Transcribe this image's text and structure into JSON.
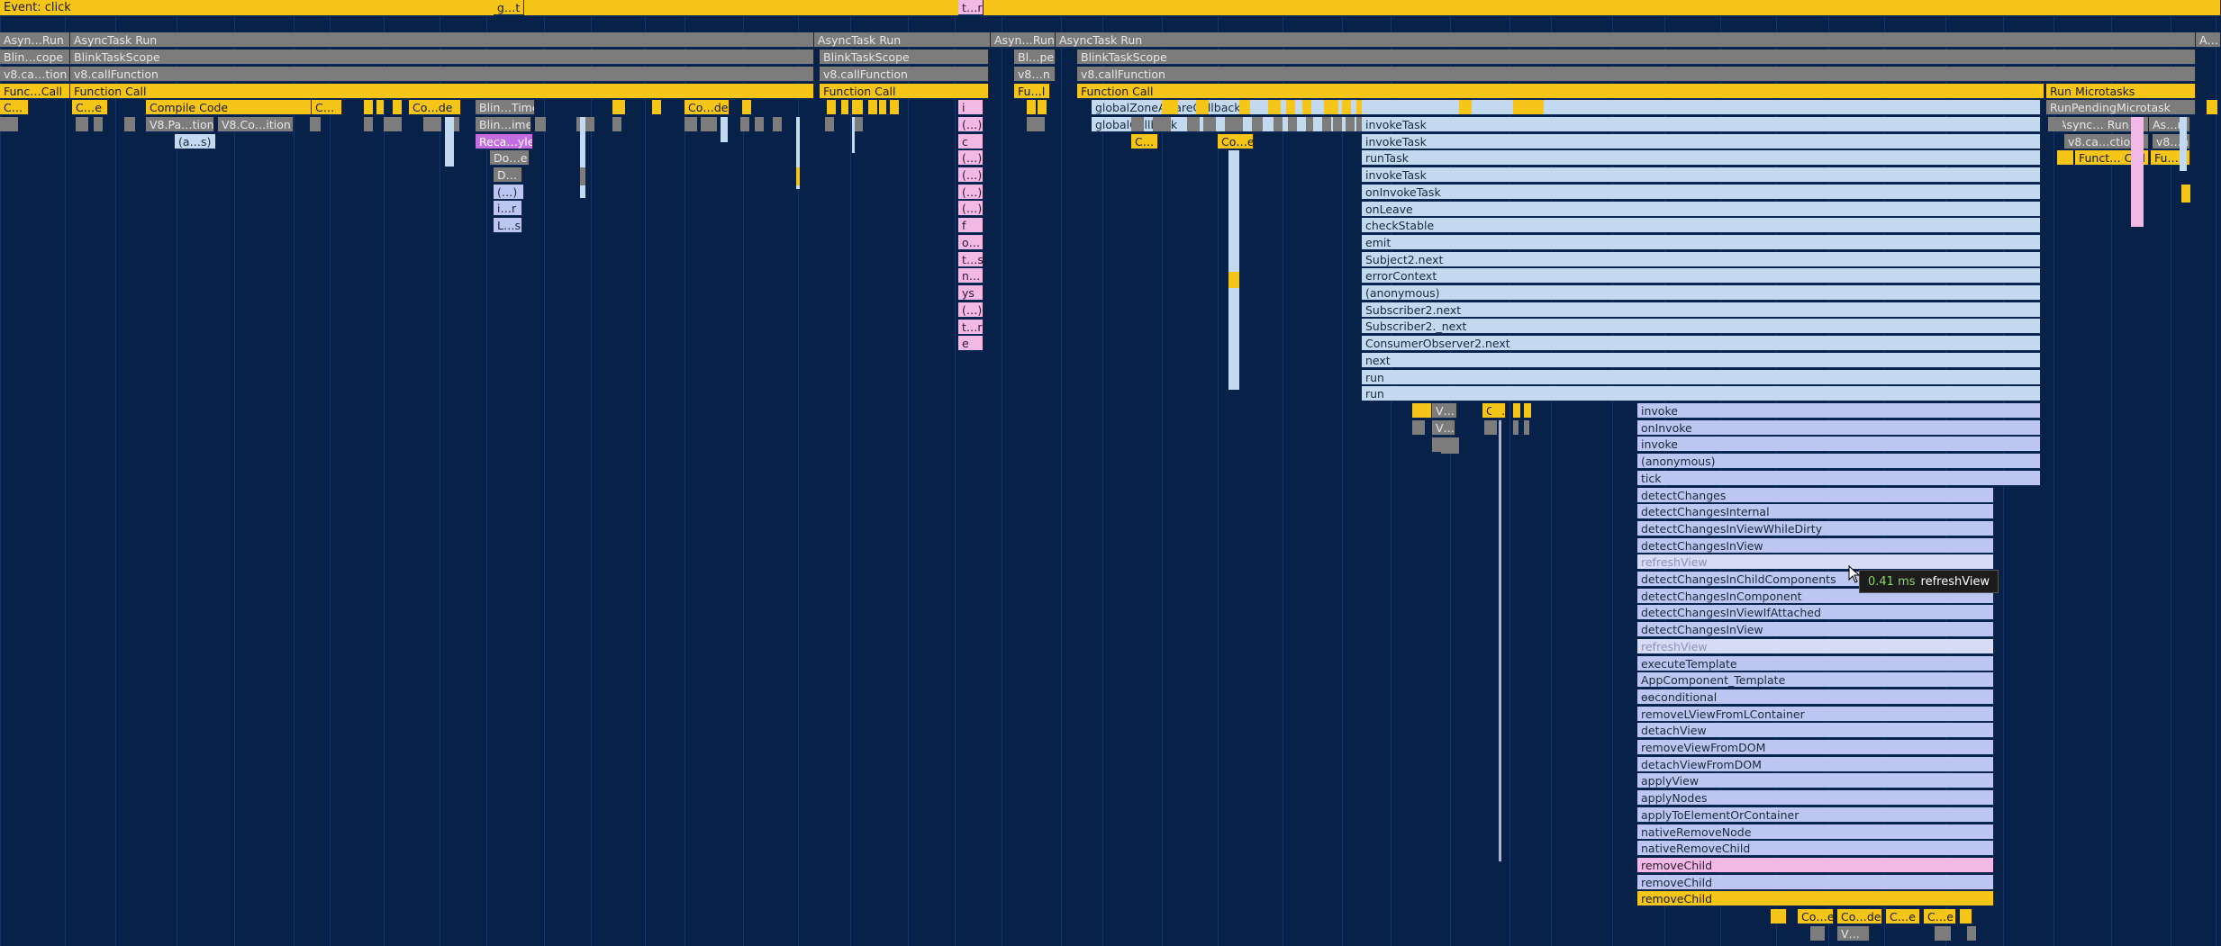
{
  "event_label": "Event: click",
  "tooltip": {
    "duration": "0.41 ms",
    "name": "refreshView"
  },
  "colors": {
    "background": "#072149",
    "scripting": "#f5c518",
    "system": "#7c7c7c",
    "framework": "#c2d9f0",
    "framework_alt": "#bcc6f0",
    "library": "#f2b8e6",
    "rendering": "#c46de3",
    "selected": "#d6dcf5",
    "tooltip_duration": "#8fd16a"
  },
  "rows": {
    "r1": [
      "Asyn…Run",
      "AsyncTask Run",
      "AsyncTask Run",
      "Asyn…Run",
      "AsyncTask Run",
      "A…"
    ],
    "r2": [
      "Blin…cope",
      "BlinkTaskScope",
      "BlinkTaskScope",
      "Bl…pe",
      "BlinkTaskScope"
    ],
    "r3": [
      "v8.ca…tion",
      "v8.callFunction",
      "v8.callFunction",
      "v8…n",
      "v8.callFunction"
    ],
    "r4": [
      "Func…Call",
      "Function Call",
      "Function Call",
      "Fu…l",
      "Function Call",
      "Run Microtasks"
    ],
    "r5": [
      "C…",
      "C…e",
      "Compile Code",
      "C…",
      "Blin…Time",
      "Co…de",
      "Co…de",
      "i",
      "globalZoneAwareCallback",
      "RunPendingMicrotask"
    ],
    "r6": [
      "V8.Pa…tion",
      "V8.Co…ition",
      "Blin…ime",
      "(…)",
      "globalCallback",
      "Async… Run",
      "As…n"
    ],
    "r7": [
      "(a…s)",
      "Reca…yle",
      "c",
      "C…",
      "Co…e",
      "v8.ca…ction",
      "v8…n"
    ],
    "r8": [
      "Do…e",
      "(…)",
      "Funct… Call",
      "Fu…ll"
    ],
    "r9": [
      "D…",
      "(…)"
    ],
    "r10": [
      "(…)",
      "(…)"
    ],
    "r11": [
      "i…r",
      "(…)"
    ],
    "r12": [
      "L…s",
      "f"
    ],
    "r13": [
      "g…t",
      "t…r"
    ],
    "lib_col": [
      "o…",
      "t…s",
      "n…",
      "ys",
      "(…)",
      "t…r",
      "e"
    ],
    "bottom_mid": [
      "V…",
      "V…",
      "C…"
    ],
    "bottom_row1": [
      "Co…e",
      "Co…de",
      "C…e",
      "C…e"
    ],
    "bottom_row2": [
      "V…"
    ]
  },
  "stack_upper": [
    "invokeTask",
    "invokeTask",
    "runTask",
    "invokeTask",
    "onInvokeTask",
    "onLeave",
    "checkStable",
    "emit",
    "Subject2.next",
    "errorContext",
    "(anonymous)",
    "Subscriber2.next",
    "Subscriber2._next",
    "ConsumerObserver2.next",
    "next",
    "run",
    "run"
  ],
  "stack_lower": [
    "invoke",
    "onInvoke",
    "invoke",
    "(anonymous)",
    "tick",
    "detectChanges",
    "detectChangesInternal",
    "detectChangesInViewWhileDirty",
    "detectChangesInView",
    "refreshView",
    "detectChangesInChildComponents",
    "detectChangesInComponent",
    "detectChangesInViewIfAttached",
    "detectChangesInView",
    "refreshView",
    "executeTemplate",
    "AppComponent_Template",
    "ɵɵconditional",
    "removeLViewFromLContainer",
    "detachView",
    "removeViewFromDOM",
    "detachViewFromDOM",
    "applyView",
    "applyNodes",
    "applyToElementOrContainer",
    "nativeRemoveNode",
    "nativeRemoveChild",
    "removeChild",
    "removeChild",
    "removeChild"
  ]
}
